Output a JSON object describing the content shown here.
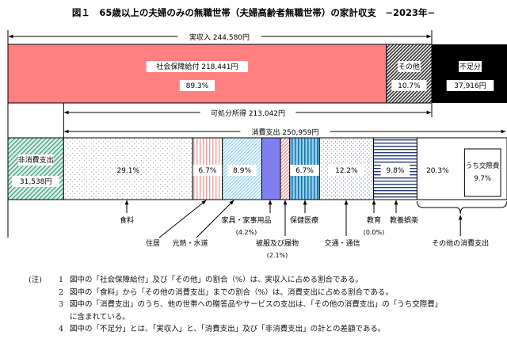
{
  "chart_data": {
    "type": "bar",
    "title": "図１　65歳以上の夫婦のみの無職世帯（夫婦高齢者無職世帯）の家計収支　−2023年−",
    "income_bar": {
      "total_label": "実収入",
      "total_value": "244,580円",
      "segments": [
        {
          "name": "社会保障給付",
          "amount": "218,441円",
          "amount_num": 218441,
          "percent": "89.3%",
          "color": "#ff8080"
        },
        {
          "name": "その他",
          "percent": "10.7%",
          "amount_num": 26139,
          "color": "hatch"
        }
      ],
      "deficit": {
        "name": "不足分",
        "amount": "37,916円",
        "color": "#000000"
      }
    },
    "disposable_income": {
      "label": "可処分所得",
      "value": "213,042円"
    },
    "consumption": {
      "label": "消費支出",
      "value": "250,959円",
      "value_num": 250959
    },
    "non_consumption": {
      "name": "非消費支出",
      "amount": "31,538円",
      "amount_num": 31538
    },
    "expense_segments": [
      {
        "name": "食料",
        "percent": "29.1%",
        "value": 29.1,
        "pattern": "dots"
      },
      {
        "name": "住居",
        "percent": "6.7%",
        "value": 6.7,
        "pattern": "pink-vstripe"
      },
      {
        "name": "光熱・水道",
        "percent": "8.9%",
        "value": 8.9,
        "pattern": "blue-diag"
      },
      {
        "name": "家具・家事用品",
        "percent": "(4.2%)",
        "value": 4.2,
        "pattern": "solid-blue"
      },
      {
        "name": "被服及び履物",
        "percent": "(2.1%)",
        "value": 2.1,
        "pattern": "pink-diag"
      },
      {
        "name": "保健医療",
        "percent": "6.7%",
        "value": 6.7,
        "pattern": "blue-vstripe"
      },
      {
        "name": "交通・通信",
        "percent": "12.2%",
        "value": 12.2,
        "pattern": "blue-dots"
      },
      {
        "name": "教育",
        "percent": "(0.0%)",
        "value": 0.0,
        "pattern": "none"
      },
      {
        "name": "教養娯楽",
        "percent": "9.8%",
        "value": 9.8,
        "pattern": "navy-hstripe"
      },
      {
        "name": "その他の消費支出",
        "percent": "20.3%",
        "value": 20.3,
        "pattern": "white"
      }
    ],
    "sub_item": {
      "name": "うち交際費",
      "percent": "9.7%"
    }
  },
  "notes": {
    "label": "(注)",
    "items": [
      {
        "num": "1",
        "text": "図中の「社会保障給付」及び「その他」の割合（%）は、実収入に占める割合である。"
      },
      {
        "num": "2",
        "text": "図中の「食料」から「その他の消費支出」までの割合（%）は、消費支出に占める割合である。"
      },
      {
        "num": "3",
        "text": "図中の「消費支出」のうち、他の世帯への贈答品やサービスの支出は、「その他の消費支出」の「うち交際費」"
      },
      {
        "num": "",
        "text": "に含まれている。"
      },
      {
        "num": "4",
        "text": "図中の「不足分」とは、「実収入」と、「消費支出」及び「非消費支出」の計との差額である。"
      }
    ]
  }
}
